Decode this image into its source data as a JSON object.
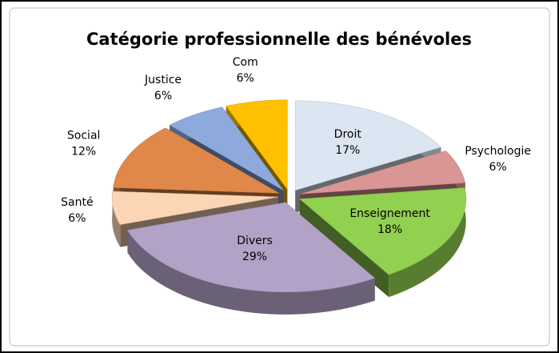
{
  "chart_data": {
    "type": "pie3d",
    "title": "Catégorie professionnelle des bénévoles",
    "categories": [
      "Droit",
      "Psychologie",
      "Enseignement",
      "Divers",
      "Santé",
      "Social",
      "Justice",
      "Com"
    ],
    "values": [
      17,
      6,
      18,
      29,
      6,
      12,
      6,
      6
    ],
    "value_labels": [
      "17%",
      "6%",
      "18%",
      "29%",
      "6%",
      "12%",
      "6%",
      "6%"
    ],
    "colors": [
      "#dce6f2",
      "#d99694",
      "#92d050",
      "#b3a2c7",
      "#fcd5b5",
      "#e0884a",
      "#8ea9db",
      "#ffc000"
    ]
  }
}
